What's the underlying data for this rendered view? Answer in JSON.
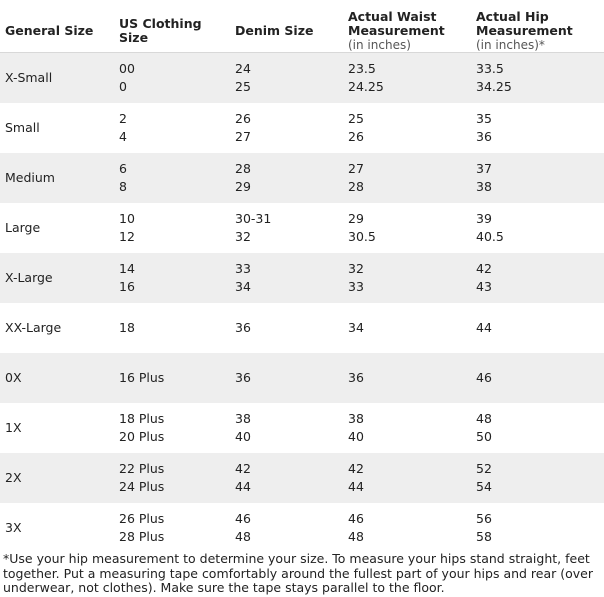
{
  "headers": {
    "general_size": "General Size",
    "us_clothing_size": "US Clothing Size",
    "denim_size": "Denim Size",
    "waist_title": "Actual Waist Measurement",
    "waist_sub": "(in inches)",
    "hip_title": "Actual Hip Measurement",
    "hip_sub": "(in inches)*"
  },
  "rows": [
    {
      "general": "X-Small",
      "us": [
        "00",
        "0"
      ],
      "denim": [
        "24",
        "25"
      ],
      "waist": [
        "23.5",
        "24.25"
      ],
      "hip": [
        "33.5",
        "34.25"
      ]
    },
    {
      "general": "Small",
      "us": [
        "2",
        "4"
      ],
      "denim": [
        "26",
        "27"
      ],
      "waist": [
        "25",
        "26"
      ],
      "hip": [
        "35",
        "36"
      ]
    },
    {
      "general": "Medium",
      "us": [
        "6",
        "8"
      ],
      "denim": [
        "28",
        "29"
      ],
      "waist": [
        "27",
        "28"
      ],
      "hip": [
        "37",
        "38"
      ]
    },
    {
      "general": "Large",
      "us": [
        "10",
        "12"
      ],
      "denim": [
        "30-31",
        "32"
      ],
      "waist": [
        "29",
        "30.5"
      ],
      "hip": [
        "39",
        "40.5"
      ]
    },
    {
      "general": "X-Large",
      "us": [
        "14",
        "16"
      ],
      "denim": [
        "33",
        "34"
      ],
      "waist": [
        "32",
        "33"
      ],
      "hip": [
        "42",
        "43"
      ]
    },
    {
      "general": "XX-Large",
      "us": [
        "18"
      ],
      "denim": [
        "36"
      ],
      "waist": [
        "34"
      ],
      "hip": [
        "44"
      ]
    },
    {
      "general": "0X",
      "us": [
        "16 Plus"
      ],
      "denim": [
        "36"
      ],
      "waist": [
        "36"
      ],
      "hip": [
        "46"
      ]
    },
    {
      "general": "1X",
      "us": [
        "18 Plus",
        "20 Plus"
      ],
      "denim": [
        "38",
        "40"
      ],
      "waist": [
        "38",
        "40"
      ],
      "hip": [
        "48",
        "50"
      ]
    },
    {
      "general": "2X",
      "us": [
        "22 Plus",
        "24 Plus"
      ],
      "denim": [
        "42",
        "44"
      ],
      "waist": [
        "42",
        "44"
      ],
      "hip": [
        "52",
        "54"
      ]
    },
    {
      "general": "3X",
      "us": [
        "26 Plus",
        "28 Plus"
      ],
      "denim": [
        "46",
        "48"
      ],
      "waist": [
        "46",
        "48"
      ],
      "hip": [
        "56",
        "58"
      ]
    }
  ],
  "footnote": "*Use your hip measurement to determine your size. To measure your hips stand straight, feet together. Put a measuring tape comfortably around the fullest part of your hips and rear (over underwear, not clothes). Make sure the tape stays parallel to the floor.",
  "colors": {
    "row_shade": "#eeeeee",
    "divider": "#d8d8d8"
  }
}
